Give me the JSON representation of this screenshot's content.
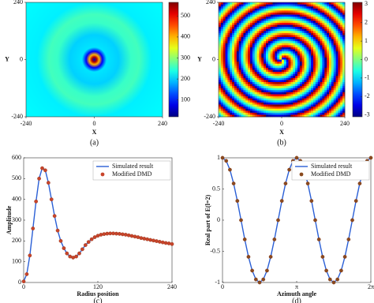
{
  "chart_data": [
    {
      "type": "heatmap",
      "panel_label": "(a)",
      "xlabel": "X",
      "ylabel": "Y",
      "xlim": [
        -240,
        240
      ],
      "ylim": [
        -240,
        240
      ],
      "xticks": [
        -240,
        0,
        240
      ],
      "yticks": [
        -240,
        0,
        240
      ],
      "colorbar_lim": [
        20,
        565
      ],
      "colorbar_ticks": [
        100,
        200,
        300,
        400,
        500
      ],
      "colormap": "jet"
    },
    {
      "type": "heatmap",
      "panel_label": "(b)",
      "xlabel": "X",
      "ylabel": "Y",
      "xlim": [
        -240,
        240
      ],
      "ylim": [
        -240,
        240
      ],
      "xticks": [
        -240,
        0,
        240
      ],
      "yticks": [
        -240,
        0,
        240
      ],
      "colorbar_lim": [
        -3.1,
        3.1
      ],
      "colorbar_ticks": [
        -3,
        -2,
        -1,
        0,
        1,
        2,
        3
      ],
      "colormap": "jet"
    },
    {
      "type": "line",
      "panel_label": "(c)",
      "xlabel": "Radius position",
      "ylabel": "Amplitude",
      "x": [
        0,
        5,
        10,
        15,
        20,
        25,
        30,
        35,
        40,
        45,
        50,
        55,
        60,
        65,
        70,
        75,
        80,
        85,
        90,
        95,
        100,
        105,
        110,
        115,
        120,
        125,
        130,
        135,
        140,
        145,
        150,
        155,
        160,
        165,
        170,
        175,
        180,
        185,
        190,
        195,
        200,
        205,
        210,
        215,
        220,
        225,
        230,
        235,
        240
      ],
      "series": [
        {
          "name": "Simulated result",
          "color": "#2a5fd6",
          "style": "line",
          "values": [
            5,
            40,
            130,
            260,
            390,
            500,
            550,
            540,
            480,
            400,
            320,
            250,
            200,
            165,
            140,
            125,
            120,
            125,
            140,
            160,
            180,
            195,
            208,
            218,
            225,
            230,
            233,
            235,
            236,
            236,
            235,
            234,
            232,
            230,
            227,
            224,
            221,
            218,
            214,
            211,
            208,
            205,
            202,
            199,
            196,
            193,
            190,
            188,
            185
          ]
        },
        {
          "name": "Modified DMD",
          "color": "#c8442a",
          "style": "marker",
          "values": [
            5,
            40,
            130,
            260,
            390,
            500,
            550,
            540,
            480,
            400,
            320,
            250,
            200,
            165,
            140,
            125,
            120,
            125,
            140,
            160,
            180,
            195,
            208,
            218,
            225,
            230,
            233,
            235,
            236,
            236,
            235,
            234,
            232,
            230,
            227,
            224,
            221,
            218,
            214,
            211,
            208,
            205,
            202,
            199,
            196,
            193,
            190,
            188,
            185
          ]
        }
      ],
      "xlim": [
        0,
        240
      ],
      "ylim": [
        0,
        600
      ],
      "xticks": [
        0,
        120,
        240
      ],
      "yticks": [
        0,
        100,
        200,
        300,
        400,
        500,
        600
      ],
      "legend": "upper right"
    },
    {
      "type": "line",
      "panel_label": "(d)",
      "xlabel": "Azimuth angle",
      "ylabel": "Real part of E(l=2)",
      "x": [
        0,
        0.157,
        0.314,
        0.471,
        0.628,
        0.785,
        0.942,
        1.1,
        1.257,
        1.414,
        1.571,
        1.728,
        1.885,
        2.042,
        2.199,
        2.356,
        2.513,
        2.67,
        2.827,
        2.985,
        3.142,
        3.299,
        3.456,
        3.613,
        3.77,
        3.927,
        4.084,
        4.241,
        4.398,
        4.555,
        4.712,
        4.869,
        5.027,
        5.184,
        5.341,
        5.498,
        5.655,
        5.812,
        5.969,
        6.126,
        6.283
      ],
      "series": [
        {
          "name": "Simulated result",
          "color": "#2a5fd6",
          "style": "line",
          "values": [
            1,
            0.951,
            0.809,
            0.588,
            0.309,
            0,
            -0.309,
            -0.588,
            -0.809,
            -0.951,
            -1,
            -0.951,
            -0.809,
            -0.588,
            -0.309,
            0,
            0.309,
            0.588,
            0.809,
            0.951,
            1,
            0.951,
            0.809,
            0.588,
            0.309,
            0,
            -0.309,
            -0.588,
            -0.809,
            -0.951,
            -1,
            -0.951,
            -0.809,
            -0.588,
            -0.309,
            0,
            0.309,
            0.588,
            0.809,
            0.951,
            1
          ]
        },
        {
          "name": "Modified DMD",
          "color": "#8a4a1e",
          "style": "marker",
          "values": [
            1,
            0.951,
            0.809,
            0.588,
            0.309,
            0,
            -0.309,
            -0.588,
            -0.809,
            -0.951,
            -1,
            -0.951,
            -0.809,
            -0.588,
            -0.309,
            0,
            0.309,
            0.588,
            0.809,
            0.951,
            1,
            0.951,
            0.809,
            0.588,
            0.309,
            0,
            -0.309,
            -0.588,
            -0.809,
            -0.951,
            -1,
            -0.951,
            -0.809,
            -0.588,
            -0.309,
            0,
            0.309,
            0.588,
            0.809,
            0.951,
            1
          ]
        }
      ],
      "xlim": [
        0,
        6.283
      ],
      "ylim": [
        -1,
        1
      ],
      "xticks": [
        0,
        {
          "value": 3.1416,
          "label": "π"
        },
        {
          "value": 6.283,
          "label": "2π"
        }
      ],
      "yticks": [
        -1,
        -0.5,
        0,
        0.5,
        1
      ],
      "legend": "upper right"
    }
  ]
}
